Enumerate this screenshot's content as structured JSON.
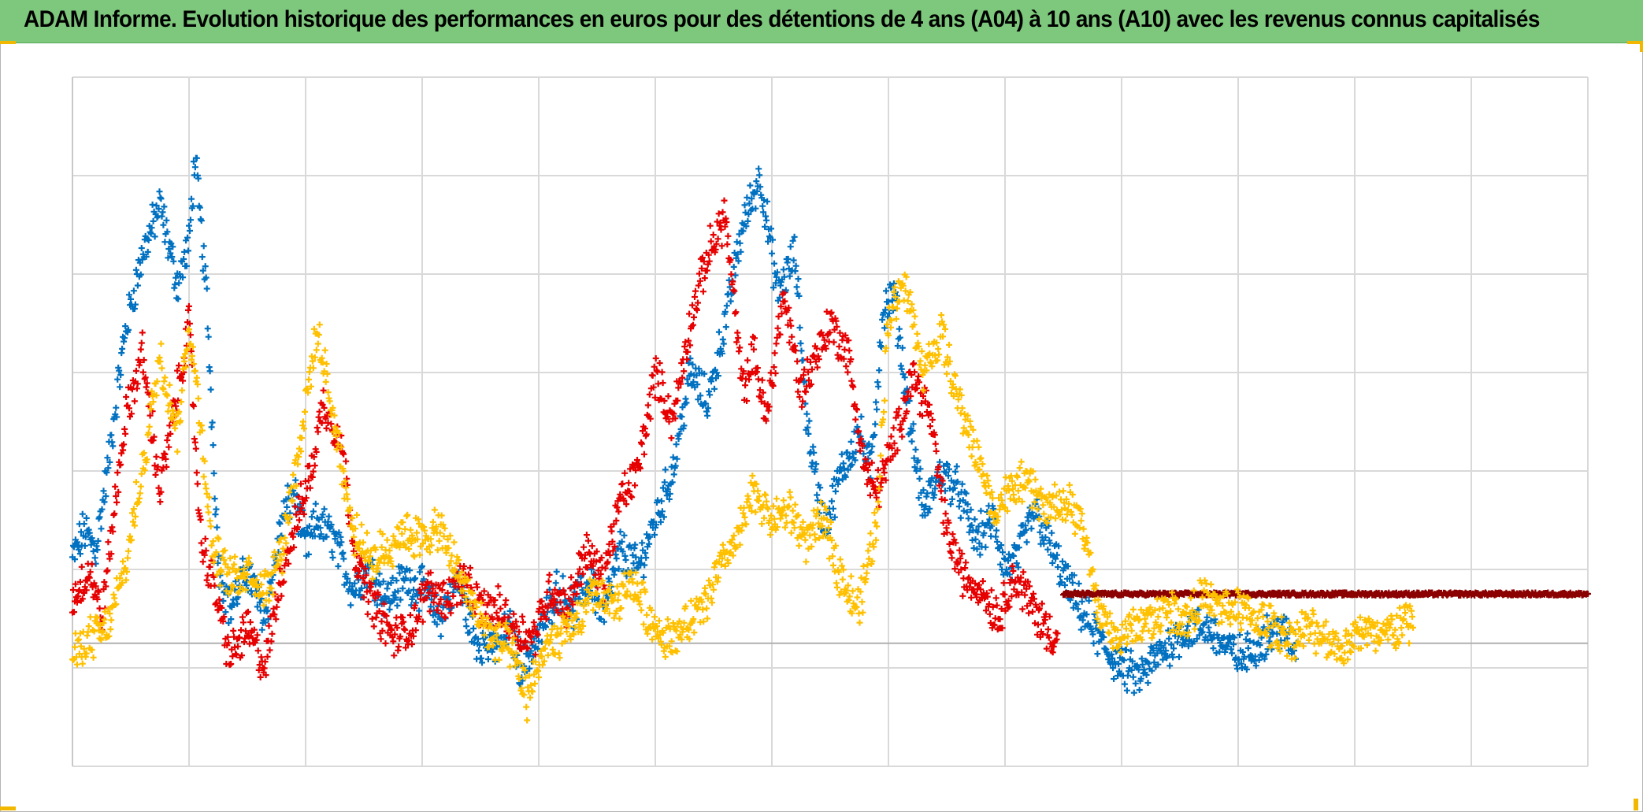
{
  "window": {
    "title": "ADAM Informe. Evolution historique des performances en euros pour des détentions de 4 ans (A04) à 10 ans (A10) avec les revenus connus capitalisés",
    "title_bar_color": "#7dc87c",
    "accent_color": "#f2b800"
  },
  "chart_data": {
    "type": "scatter",
    "marker": "plus",
    "title": "ADAM Informe. Evolution historique des performances en euros pour des détentions de 4 ans (A04) à 10 ans (A10) avec les revenus connus capitalisés",
    "xlabel": "",
    "ylabel": "",
    "legend": "none",
    "grid": true,
    "x_gridlines": 13,
    "y_gridlines": 7,
    "xlim": [
      0,
      13
    ],
    "ylim": [
      -1,
      6
    ],
    "reference_line_y": 0.25,
    "series": [
      {
        "color": "#0070c0",
        "x": [
          0.0,
          0.1,
          0.2,
          0.3,
          0.45,
          0.6,
          0.75,
          0.9,
          1.0,
          1.05,
          1.15,
          1.25,
          1.35,
          1.5,
          1.65,
          1.8,
          1.9,
          2.0,
          2.1,
          2.25,
          2.4,
          2.55,
          2.7,
          2.85,
          3.0,
          3.15,
          3.3,
          3.45,
          3.6,
          3.75,
          3.85,
          4.0,
          4.15,
          4.3,
          4.45,
          4.55,
          4.7,
          4.85,
          5.0,
          5.15,
          5.3,
          5.45,
          5.6,
          5.75,
          5.9,
          6.05,
          6.2,
          6.3,
          6.45,
          6.6,
          6.75,
          6.85,
          6.95,
          7.05,
          7.15,
          7.3,
          7.45,
          7.6,
          7.75,
          7.9,
          8.0,
          8.1,
          8.25,
          8.4,
          8.55,
          8.7,
          8.85,
          9.0,
          9.15,
          9.3,
          9.45,
          9.6,
          9.75,
          9.9,
          10.05,
          10.2,
          10.35,
          10.5
        ],
        "y": [
          1.1,
          1.4,
          1.2,
          2.0,
          3.4,
          4.2,
          4.7,
          3.9,
          4.3,
          5.2,
          3.8,
          1.1,
          0.6,
          1.0,
          0.5,
          1.5,
          1.8,
          1.2,
          1.5,
          1.3,
          0.8,
          1.0,
          0.7,
          0.9,
          0.8,
          0.5,
          0.9,
          0.3,
          0.2,
          0.4,
          0.0,
          0.3,
          0.8,
          0.6,
          0.9,
          0.5,
          1.2,
          1.0,
          1.5,
          2.0,
          3.0,
          2.7,
          3.5,
          4.5,
          5.0,
          3.8,
          4.2,
          2.5,
          1.4,
          2.0,
          2.4,
          2.0,
          3.6,
          3.8,
          2.8,
          1.6,
          2.0,
          1.8,
          1.3,
          1.5,
          1.0,
          1.1,
          1.6,
          1.2,
          0.8,
          0.5,
          0.2,
          0.0,
          -0.1,
          0.1,
          0.3,
          0.4,
          0.4,
          0.2,
          0.1,
          0.3,
          0.4,
          0.2
        ]
      },
      {
        "color": "#e60000",
        "x": [
          0.0,
          0.15,
          0.25,
          0.35,
          0.45,
          0.6,
          0.75,
          0.9,
          1.0,
          1.1,
          1.2,
          1.35,
          1.5,
          1.65,
          1.8,
          1.95,
          2.05,
          2.15,
          2.3,
          2.45,
          2.6,
          2.75,
          2.9,
          3.05,
          3.2,
          3.35,
          3.5,
          3.65,
          3.8,
          3.95,
          4.1,
          4.25,
          4.4,
          4.55,
          4.7,
          4.85,
          5.0,
          5.15,
          5.3,
          5.45,
          5.6,
          5.75,
          5.85,
          5.95,
          6.1,
          6.25,
          6.35,
          6.5,
          6.65,
          6.8,
          6.9,
          7.0,
          7.1,
          7.2,
          7.35,
          7.5,
          7.65,
          7.8,
          7.95,
          8.05,
          8.15,
          8.25,
          8.35,
          8.45
        ],
        "y": [
          0.7,
          1.0,
          0.5,
          1.5,
          2.5,
          3.2,
          1.8,
          2.8,
          3.5,
          1.3,
          0.9,
          0.1,
          0.4,
          0.0,
          1.0,
          1.6,
          2.0,
          2.7,
          2.3,
          1.0,
          0.6,
          0.3,
          0.4,
          0.8,
          0.7,
          0.9,
          0.6,
          0.6,
          0.4,
          0.3,
          0.8,
          0.6,
          1.2,
          0.9,
          1.7,
          2.0,
          3.0,
          2.5,
          3.5,
          4.2,
          4.6,
          2.8,
          3.2,
          2.5,
          3.8,
          2.8,
          3.1,
          3.5,
          3.2,
          2.0,
          1.8,
          2.1,
          2.5,
          3.0,
          2.6,
          1.4,
          0.9,
          0.8,
          0.5,
          0.9,
          0.8,
          0.6,
          0.4,
          0.3
        ]
      },
      {
        "color": "#8b0000",
        "x": [
          8.5,
          9.0,
          9.5,
          10.0,
          10.5,
          11.0,
          11.5,
          12.0,
          12.5,
          13.0
        ],
        "y": [
          0.75,
          0.75,
          0.75,
          0.75,
          0.75,
          0.75,
          0.75,
          0.75,
          0.75,
          0.75
        ]
      },
      {
        "color": "#ffc000",
        "x": [
          0.0,
          0.15,
          0.3,
          0.45,
          0.6,
          0.75,
          0.9,
          1.0,
          1.1,
          1.2,
          1.35,
          1.5,
          1.65,
          1.8,
          1.95,
          2.1,
          2.25,
          2.4,
          2.55,
          2.7,
          2.85,
          3.0,
          3.15,
          3.3,
          3.45,
          3.6,
          3.75,
          3.9,
          4.05,
          4.2,
          4.35,
          4.5,
          4.65,
          4.8,
          4.95,
          5.1,
          5.25,
          5.4,
          5.55,
          5.7,
          5.85,
          6.0,
          6.15,
          6.3,
          6.45,
          6.6,
          6.75,
          6.9,
          7.0,
          7.15,
          7.3,
          7.45,
          7.6,
          7.75,
          7.9,
          8.05,
          8.2,
          8.35,
          8.5,
          8.65,
          8.8,
          8.95,
          9.1,
          9.25,
          9.4,
          9.55,
          9.7,
          9.85,
          10.0,
          10.15,
          10.3,
          10.45,
          10.6,
          10.75,
          10.9,
          11.05,
          11.2,
          11.35,
          11.5
        ],
        "y": [
          0.1,
          0.3,
          0.4,
          1.0,
          2.0,
          3.2,
          2.4,
          3.5,
          2.5,
          1.2,
          0.9,
          1.0,
          0.8,
          1.2,
          2.3,
          3.4,
          2.5,
          1.4,
          1.1,
          1.2,
          1.4,
          1.3,
          1.4,
          1.0,
          0.6,
          0.3,
          0.2,
          -0.3,
          0.2,
          0.3,
          0.5,
          0.8,
          0.6,
          0.9,
          0.5,
          0.3,
          0.4,
          0.6,
          1.0,
          1.3,
          1.8,
          1.5,
          1.6,
          1.3,
          1.5,
          0.9,
          0.6,
          1.5,
          3.6,
          3.9,
          3.0,
          3.4,
          2.7,
          2.2,
          1.6,
          1.8,
          1.9,
          1.6,
          1.7,
          1.5,
          0.6,
          0.3,
          0.4,
          0.5,
          0.6,
          0.5,
          0.7,
          0.6,
          0.6,
          0.5,
          0.4,
          0.3,
          0.4,
          0.3,
          0.2,
          0.4,
          0.3,
          0.4,
          0.5
        ]
      }
    ]
  }
}
